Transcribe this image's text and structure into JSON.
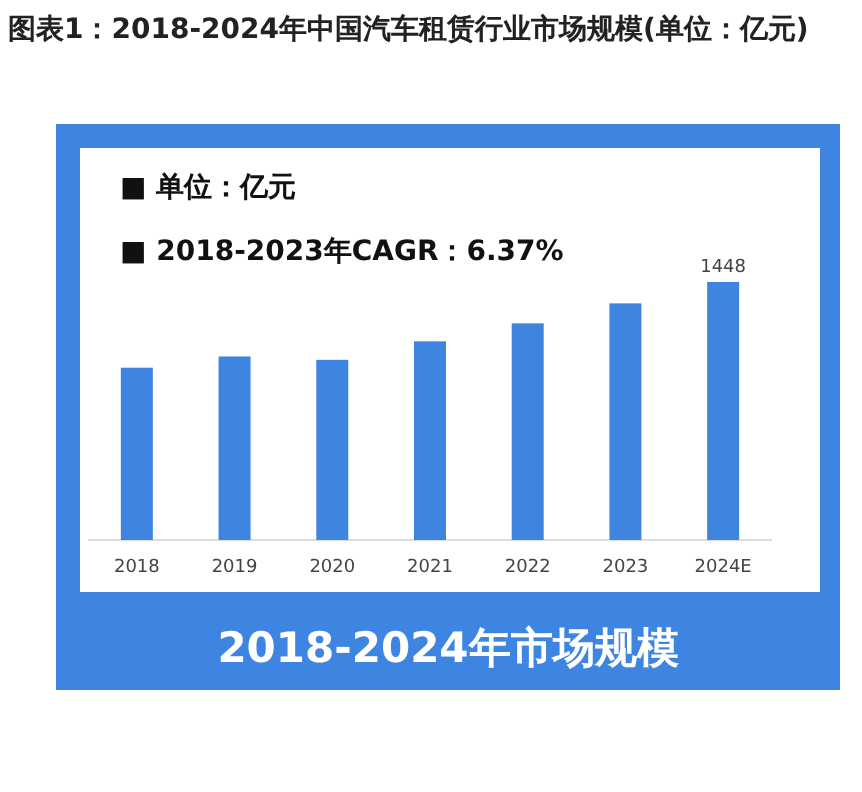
{
  "chart_data": {
    "type": "bar",
    "title": "图表1：2018-2024年中国汽车租赁行业市场规模(单位：亿元)",
    "subtitle": "2018-2024年市场规模",
    "annotations": [
      "■  单位：亿元",
      "■  2018-2023年CAGR：6.37%"
    ],
    "categories": [
      "2018",
      "2019",
      "2020",
      "2021",
      "2022",
      "2023",
      "2024E"
    ],
    "values": [
      967,
      1030,
      1011,
      1115,
      1216,
      1328,
      1448
    ],
    "value_labels": [
      null,
      null,
      null,
      null,
      null,
      null,
      "1448"
    ],
    "color": "#3d85e0"
  }
}
